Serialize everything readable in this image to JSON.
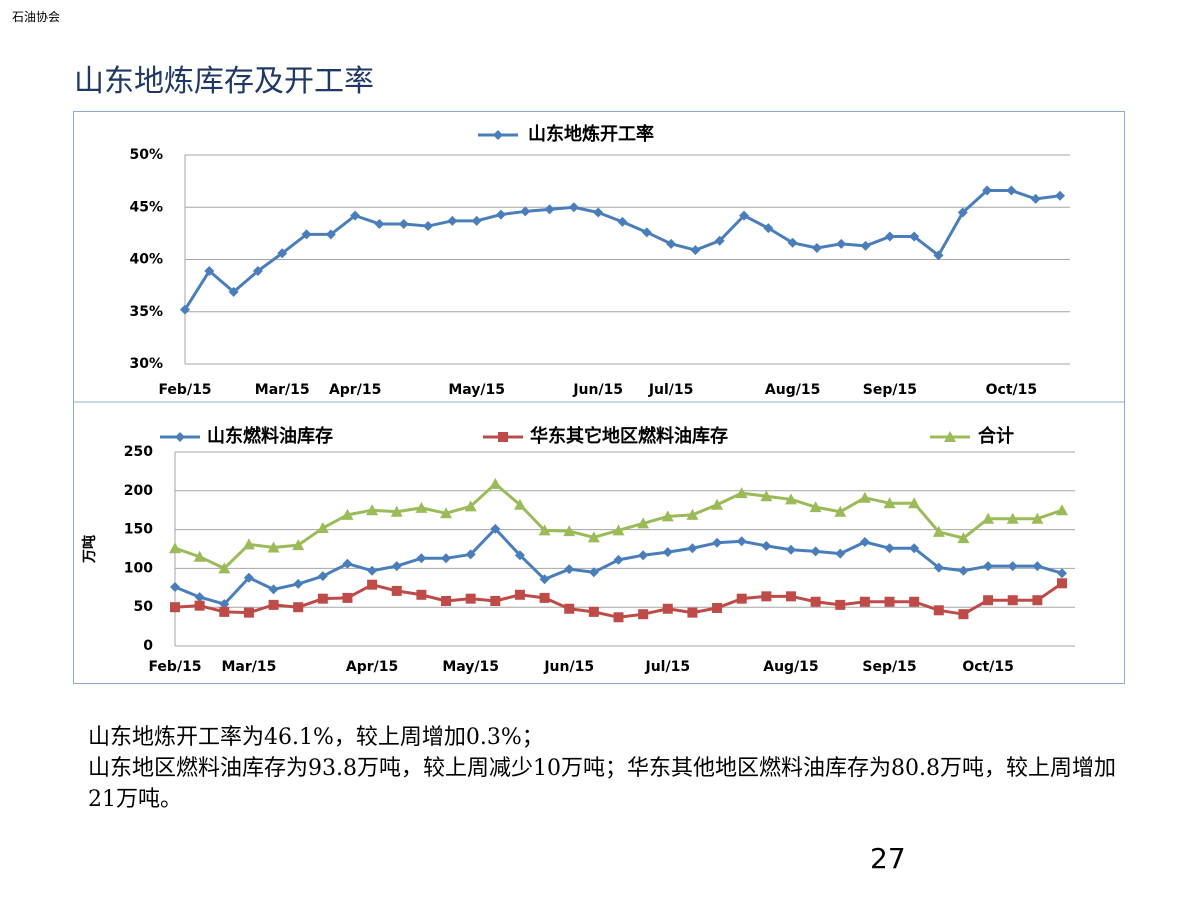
{
  "header": "石油协会",
  "title": "山东地炼库存及开工率",
  "chart_data": [
    {
      "type": "line",
      "categories": [
        "Feb/15",
        null,
        null,
        null,
        "Mar/15",
        null,
        null,
        "Apr/15",
        null,
        null,
        null,
        null,
        "May/15",
        null,
        null,
        null,
        null,
        "Jun/15",
        null,
        null,
        "Jul/15",
        null,
        null,
        null,
        null,
        "Aug/15",
        null,
        null,
        null,
        "Sep/15",
        null,
        null,
        null,
        null,
        "Oct/15",
        null,
        null
      ],
      "series": [
        {
          "name": "山东地炼开工率",
          "color": "#4a7ebb",
          "values": [
            35.2,
            38.9,
            36.9,
            38.9,
            40.6,
            42.4,
            42.4,
            44.2,
            43.4,
            43.4,
            43.2,
            43.7,
            43.7,
            44.3,
            44.6,
            44.8,
            45.0,
            44.5,
            43.6,
            42.6,
            41.5,
            40.9,
            41.8,
            44.2,
            43.0,
            41.6,
            41.1,
            41.5,
            41.3,
            42.2,
            42.2,
            40.4,
            44.5,
            46.6,
            46.6,
            45.8,
            46.1
          ]
        }
      ],
      "ylim": [
        30,
        50
      ],
      "yticks": [
        {
          "value": 30,
          "label": "30%"
        },
        {
          "value": 35,
          "label": "35%"
        },
        {
          "value": 40,
          "label": "40%"
        },
        {
          "value": 45,
          "label": "45%"
        },
        {
          "value": 50,
          "label": "50%"
        }
      ],
      "grid": true,
      "legend": "top"
    },
    {
      "type": "line",
      "ylabel": "万吨",
      "categories": [
        "Feb/15",
        null,
        null,
        "Mar/15",
        null,
        null,
        null,
        null,
        "Apr/15",
        null,
        null,
        null,
        "May/15",
        null,
        null,
        null,
        "Jun/15",
        null,
        null,
        null,
        "Jul/15",
        null,
        null,
        null,
        null,
        "Aug/15",
        null,
        null,
        null,
        "Sep/15",
        null,
        null,
        null,
        "Oct/15",
        null,
        null,
        null
      ],
      "series": [
        {
          "name": "山东燃料油库存",
          "color": "#4a7ebb",
          "marker": "diamond",
          "values": [
            76,
            63,
            54,
            88,
            73,
            80,
            90,
            106,
            97,
            103,
            113,
            113,
            118,
            151,
            117,
            86,
            99,
            95,
            111,
            117,
            121,
            126,
            133,
            135,
            129,
            124,
            122,
            119,
            134,
            126,
            126,
            101,
            97,
            103,
            103,
            103,
            93.8
          ]
        },
        {
          "name": "华东其它地区燃料油库存",
          "color": "#be4b48",
          "marker": "square",
          "values": [
            50,
            52,
            44,
            43,
            53,
            50,
            61,
            62,
            79,
            71,
            66,
            58,
            61,
            58,
            66,
            62,
            48,
            44,
            37,
            41,
            48,
            43,
            49,
            61,
            64,
            64,
            57,
            53,
            57,
            57,
            57,
            46,
            41,
            59,
            59,
            59,
            80.8
          ]
        },
        {
          "name": "合计",
          "color": "#9bbb59",
          "marker": "triangle",
          "values": [
            126,
            115,
            100,
            131,
            127,
            130,
            152,
            169,
            175,
            173,
            178,
            171,
            180,
            209,
            182,
            149,
            148,
            140,
            149,
            158,
            167,
            169,
            182,
            197,
            193,
            189,
            179,
            173,
            191,
            184,
            184,
            147,
            139,
            164,
            164,
            164,
            175
          ]
        }
      ],
      "ylim": [
        0,
        250
      ],
      "yticks": [
        0,
        50,
        100,
        150,
        200,
        250
      ],
      "grid": true,
      "legend": "top"
    }
  ],
  "paragraphs": [
    "山东地炼开工率为46.1%，较上周增加0.3%；",
    "山东地区燃料油库存为93.8万吨，较上周减少10万吨；华东其他地区燃料油库存为80.8万吨，较上周增加21万吨。"
  ],
  "page_number": "27"
}
